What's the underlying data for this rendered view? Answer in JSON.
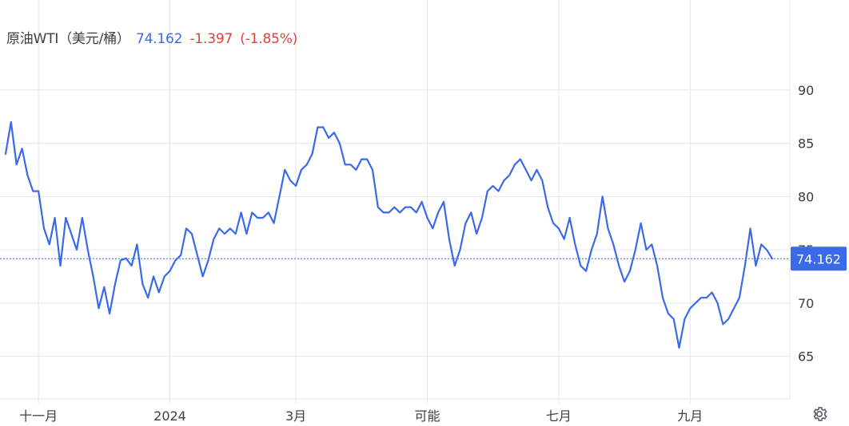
{
  "header": {
    "name": "原油WTI（美元/桶）",
    "price": "74.162",
    "change": "-1.397",
    "change_pct": "(-1.85%)"
  },
  "colors": {
    "line": "#3b6ae8",
    "negative": "#e0413a",
    "grid": "#e4e7eb",
    "tag_bg": "#3b6ae8"
  },
  "chart_data": {
    "type": "line",
    "title": "原油WTI（美元/桶）",
    "xlabel": "",
    "ylabel": "",
    "ylim": [
      61,
      98
    ],
    "y_ticks": [
      65,
      70,
      75,
      80,
      85,
      90
    ],
    "x_tick_labels": [
      "十一月",
      "2024",
      "3月",
      "可能",
      "七月",
      "九月"
    ],
    "x_tick_positions": [
      6,
      30,
      53,
      77,
      101,
      125
    ],
    "current_value": 74.162,
    "current_label": "74.162",
    "x": [
      0,
      1,
      2,
      3,
      4,
      5,
      6,
      7,
      8,
      9,
      10,
      11,
      12,
      13,
      14,
      15,
      16,
      17,
      18,
      19,
      20,
      21,
      22,
      23,
      24,
      25,
      26,
      27,
      28,
      29,
      30,
      31,
      32,
      33,
      34,
      35,
      36,
      37,
      38,
      39,
      40,
      41,
      42,
      43,
      44,
      45,
      46,
      47,
      48,
      49,
      50,
      51,
      52,
      53,
      54,
      55,
      56,
      57,
      58,
      59,
      60,
      61,
      62,
      63,
      64,
      65,
      66,
      67,
      68,
      69,
      70,
      71,
      72,
      73,
      74,
      75,
      76,
      77,
      78,
      79,
      80,
      81,
      82,
      83,
      84,
      85,
      86,
      87,
      88,
      89,
      90,
      91,
      92,
      93,
      94,
      95,
      96,
      97,
      98,
      99,
      100,
      101,
      102,
      103,
      104,
      105,
      106,
      107,
      108,
      109,
      110,
      111,
      112,
      113,
      114,
      115,
      116,
      117,
      118,
      119,
      120,
      121,
      122,
      123,
      124,
      125,
      126,
      127,
      128,
      129,
      130,
      131,
      132,
      133,
      134,
      135,
      136,
      137,
      138,
      139,
      140
    ],
    "series": [
      {
        "values": [
          84.0,
          87.0,
          83.0,
          84.5,
          82.0,
          80.5,
          80.5,
          77.0,
          75.5,
          78.0,
          73.5,
          78.0,
          76.5,
          75.0,
          78.0,
          75.0,
          72.5,
          69.5,
          71.5,
          69.0,
          71.8,
          74.0,
          74.2,
          73.5,
          75.5,
          71.8,
          70.5,
          72.5,
          71.0,
          72.5,
          73.0,
          74.0,
          74.5,
          77.0,
          76.5,
          74.5,
          72.5,
          74.0,
          76.0,
          77.0,
          76.5,
          77.0,
          76.5,
          78.5,
          76.5,
          78.5,
          78.0,
          78.0,
          78.5,
          77.5,
          80.0,
          82.5,
          81.5,
          81.0,
          82.5,
          83.0,
          84.0,
          86.5,
          86.5,
          85.5,
          86.0,
          85.0,
          83.0,
          83.0,
          82.5,
          83.5,
          83.5,
          82.5,
          79.0,
          78.5,
          78.5,
          79.0,
          78.5,
          79.0,
          79.0,
          78.5,
          79.5,
          78.0,
          77.0,
          78.5,
          79.5,
          76.0,
          73.5,
          75.0,
          77.5,
          78.5,
          76.5,
          78.0,
          80.5,
          81.0,
          80.5,
          81.5,
          82.0,
          83.0,
          83.5,
          82.5,
          81.5,
          82.5,
          81.5,
          79.0,
          77.5,
          77.0,
          76.0,
          78.0,
          75.5,
          73.5,
          73.0,
          75.0,
          76.5,
          80.0,
          77.0,
          75.5,
          73.5,
          72.0,
          73.0,
          75.0,
          77.5,
          75.0,
          75.5,
          73.5,
          70.5,
          69.0,
          68.5,
          65.8,
          68.5,
          69.5,
          70.0,
          70.5,
          70.5,
          71.0,
          70.0,
          68.0,
          68.5,
          69.5,
          70.5,
          73.5,
          77.0,
          73.5,
          75.5,
          75.0,
          74.162
        ]
      }
    ]
  }
}
